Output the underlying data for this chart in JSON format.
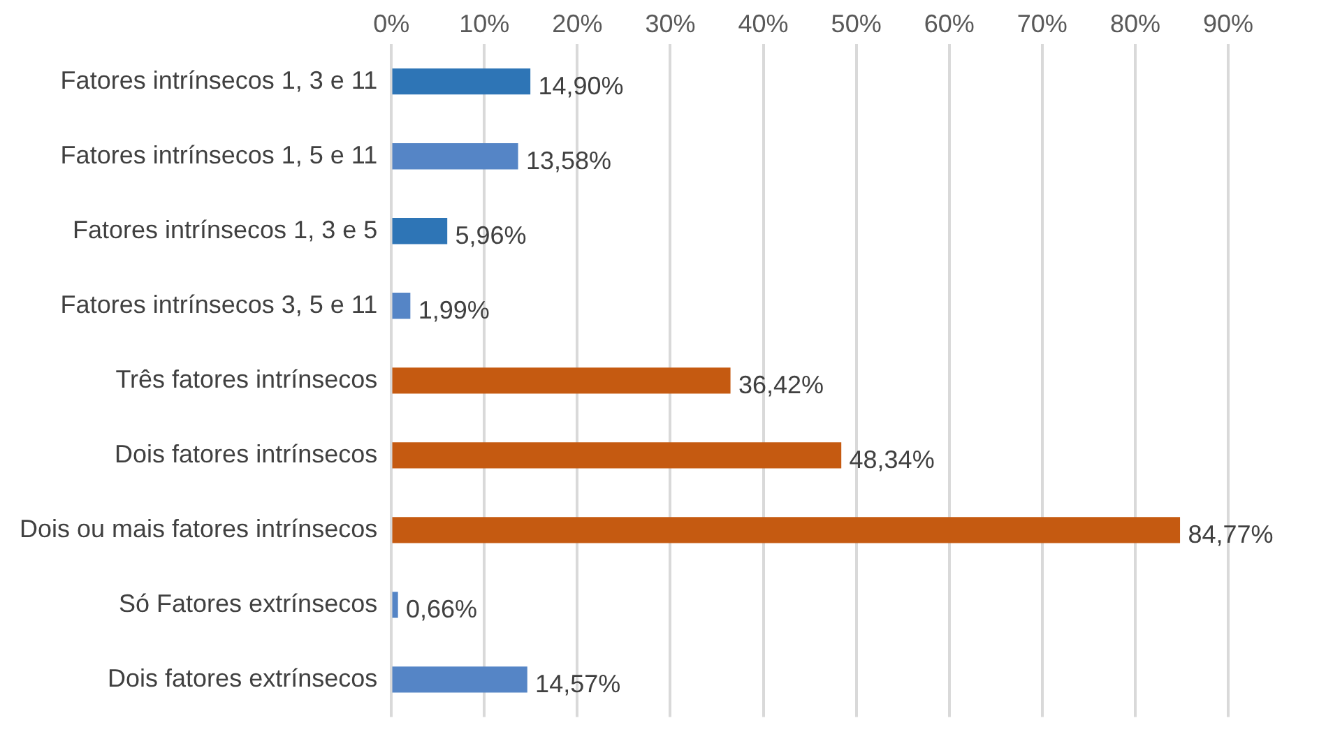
{
  "chart_data": {
    "type": "bar",
    "orientation": "horizontal",
    "categories": [
      "Fatores intrínsecos 1, 3 e 11",
      "Fatores intrínsecos 1, 5 e 11",
      "Fatores intrínsecos 1, 3 e 5",
      "Fatores intrínsecos 3, 5 e 11",
      "Três fatores intrínsecos",
      "Dois fatores intrínsecos",
      "Dois ou mais fatores intrínsecos",
      "Só Fatores extrínsecos",
      "Dois fatores extrínsecos"
    ],
    "values": [
      14.9,
      13.58,
      5.96,
      1.99,
      36.42,
      48.34,
      84.77,
      0.66,
      14.57
    ],
    "value_labels": [
      "14,90%",
      "13,58%",
      "5,96%",
      "1,99%",
      "36,42%",
      "48,34%",
      "84,77%",
      "0,66%",
      "14,57%"
    ],
    "colors": [
      "#2e75b6",
      "#5585c6",
      "#2e75b6",
      "#5585c6",
      "#c55a11",
      "#c55a11",
      "#c55a11",
      "#5585c6",
      "#5585c6"
    ],
    "xlim": [
      0,
      90
    ],
    "xticks": [
      {
        "value": 0,
        "label": "0%"
      },
      {
        "value": 10,
        "label": "10%"
      },
      {
        "value": 20,
        "label": "20%"
      },
      {
        "value": 30,
        "label": "30%"
      },
      {
        "value": 40,
        "label": "40%"
      },
      {
        "value": 50,
        "label": "50%"
      },
      {
        "value": 60,
        "label": "60%"
      },
      {
        "value": 70,
        "label": "70%"
      },
      {
        "value": 80,
        "label": "80%"
      },
      {
        "value": 90,
        "label": "90%"
      }
    ],
    "grid": "x",
    "legend": false
  }
}
